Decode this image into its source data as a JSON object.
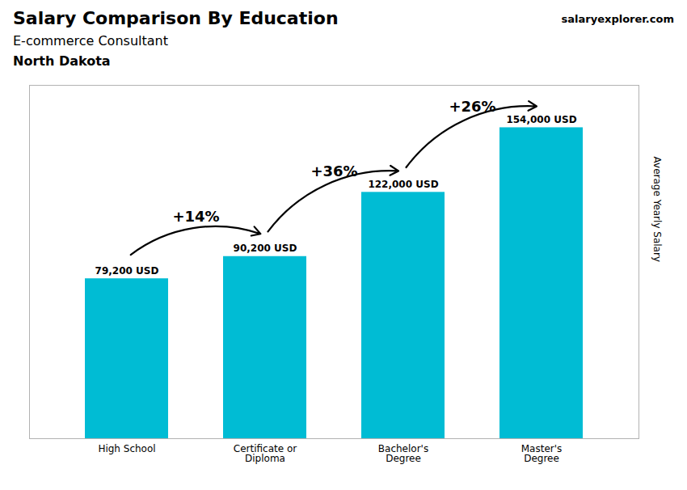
{
  "chart_data": {
    "type": "bar",
    "title": "Salary Comparison By Education",
    "subtitle": [
      "E-commerce Consultant",
      "North Dakota"
    ],
    "ylabel": "Average Yearly Salary",
    "categories": [
      "High School",
      "Certificate or\nDiploma",
      "Bachelor's\nDegree",
      "Master's\nDegree"
    ],
    "values": [
      79200,
      90200,
      122000,
      154000
    ],
    "value_labels": [
      "79,200 USD",
      "90,200 USD",
      "122,000 USD",
      "154,000 USD"
    ],
    "data_labels": true,
    "color": "#00bcd4",
    "ylim": [
      0,
      175000
    ],
    "tick_labels": "x",
    "annotations": [
      {
        "text": "salaryexplorer.com"
      },
      {
        "text": "+14%",
        "between": [
          "High School",
          "Certificate or\nDiploma"
        ]
      },
      {
        "text": "+36%",
        "between": [
          "Certificate or\nDiploma",
          "Bachelor's\nDegree"
        ]
      },
      {
        "text": "+26%",
        "between": [
          "Bachelor's\nDegree",
          "Master's\nDegree"
        ]
      }
    ]
  }
}
